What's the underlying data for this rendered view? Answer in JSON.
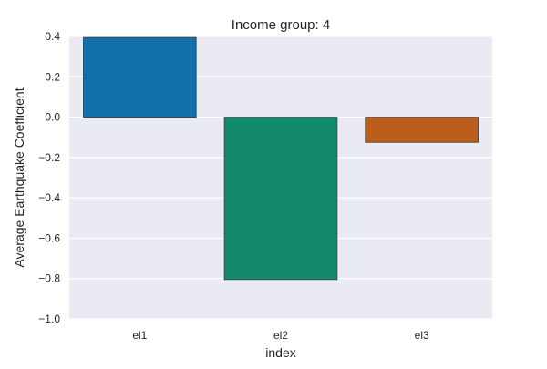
{
  "chart_data": {
    "type": "bar",
    "title": "Income group: 4",
    "xlabel": "index",
    "ylabel": "Average Earthquake Coefficient",
    "categories": [
      "el1",
      "el2",
      "el3"
    ],
    "values": [
      0.395,
      -0.805,
      -0.125
    ],
    "colors": [
      "#1170aa",
      "#138a6a",
      "#bb5e1c"
    ],
    "ylim": [
      -1.0,
      0.4
    ],
    "yticks": [
      0.4,
      0.2,
      0.0,
      -0.2,
      -0.4,
      -0.6,
      -0.8,
      -1.0
    ],
    "ytick_labels": [
      "0.4",
      "0.2",
      "0.0",
      "−0.2",
      "−0.4",
      "−0.6",
      "−0.8",
      "−1.0"
    ],
    "grid": true,
    "plot_background": "#eaeaf2"
  }
}
